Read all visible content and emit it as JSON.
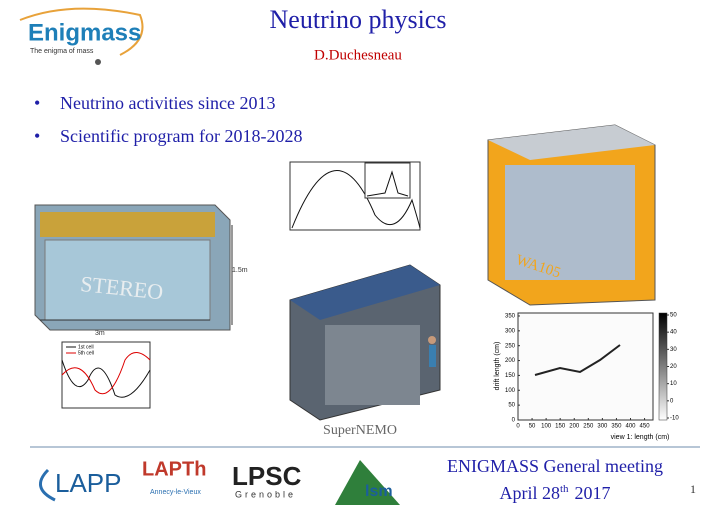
{
  "logo": {
    "name": "Enigmass",
    "tagline": "The enigma of mass"
  },
  "title": "Neutrino physics",
  "author": "D.Duchesneau",
  "bullets": [
    "Neutrino activities since 2013",
    "Scientific program  for 2018-2028"
  ],
  "figures": {
    "stereo": {
      "label": "STEREO",
      "height": "1.5m",
      "width": "3m",
      "legend": [
        "1st cell",
        "5th cell"
      ]
    },
    "wa105": {
      "label": "WA105"
    },
    "supernemo": {
      "label": "SuperNEMO"
    },
    "drift": {
      "ylabel": "drift length (cm)",
      "xlabel": "view 1: length (cm)",
      "xticks": [
        0,
        50,
        100,
        150,
        200,
        250,
        300,
        350,
        400,
        450
      ],
      "yticks": [
        0,
        50,
        100,
        150,
        200,
        250,
        300,
        350
      ],
      "colorbar_ticks": [
        -10,
        0,
        10,
        20,
        30,
        40,
        50
      ]
    }
  },
  "footer": {
    "meeting": "ENIGMASS General meeting",
    "date": "April 28",
    "date_sup": "th",
    "year": "2017",
    "page": "1"
  },
  "partners": [
    "LAPP",
    "LAPTh",
    "Annecy-le-Vieux",
    "LPSC",
    "Grenoble",
    "lsm"
  ]
}
